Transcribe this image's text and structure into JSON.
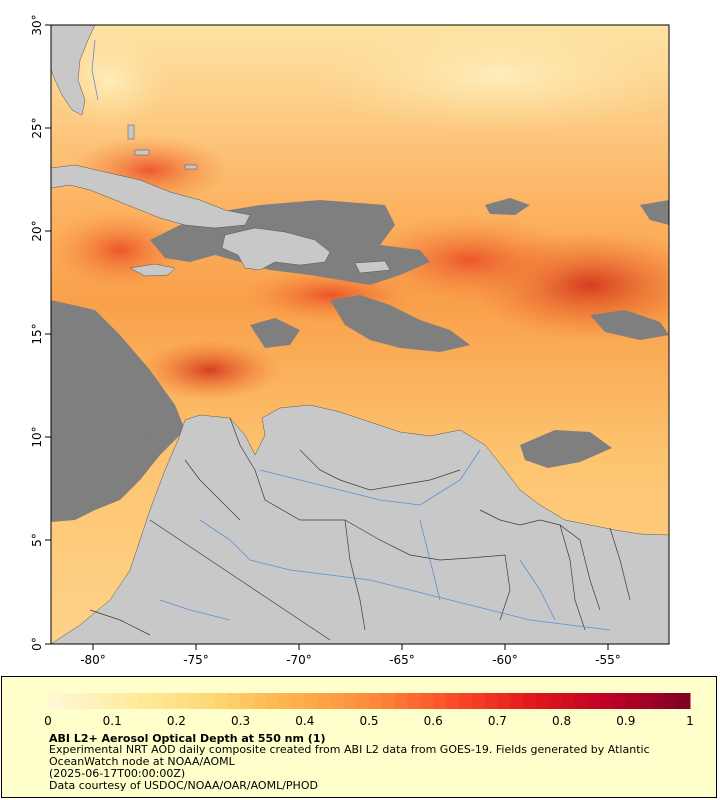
{
  "map": {
    "lat_labels": [
      "0°",
      "5°",
      "10°",
      "15°",
      "20°",
      "25°",
      "30°"
    ],
    "lon_labels": [
      "-80°",
      "-75°",
      "-70°",
      "-65°",
      "-60°",
      "-55°"
    ],
    "colors": {
      "land": "#c8c8c8",
      "cloud_mask": "#7f7f7f",
      "borders": "#3c3c3c",
      "rivers": "#5b8fd6"
    }
  },
  "legend": {
    "ticks": [
      "0",
      "0.1",
      "0.2",
      "0.3",
      "0.4",
      "0.5",
      "0.6",
      "0.7",
      "0.8",
      "0.9",
      "1"
    ],
    "colormap": [
      "#fff7d8",
      "#ffeda0",
      "#fed976",
      "#feb24c",
      "#fd8d3c",
      "#fc4e2a",
      "#e31a1c",
      "#bd0026",
      "#800026"
    ],
    "title": "ABI L2+ Aerosol Optical Depth at 550 nm (1)",
    "description": "Experimental NRT AOD daily composite created from ABI L2 data from GOES-19. Fields generated by Atlantic OceanWatch node at NOAA/AOML",
    "timestamp": "(2025-06-17T00:00:00Z)",
    "credit": "Data courtesy of USDOC/NOAA/OAR/AOML/PHOD"
  }
}
